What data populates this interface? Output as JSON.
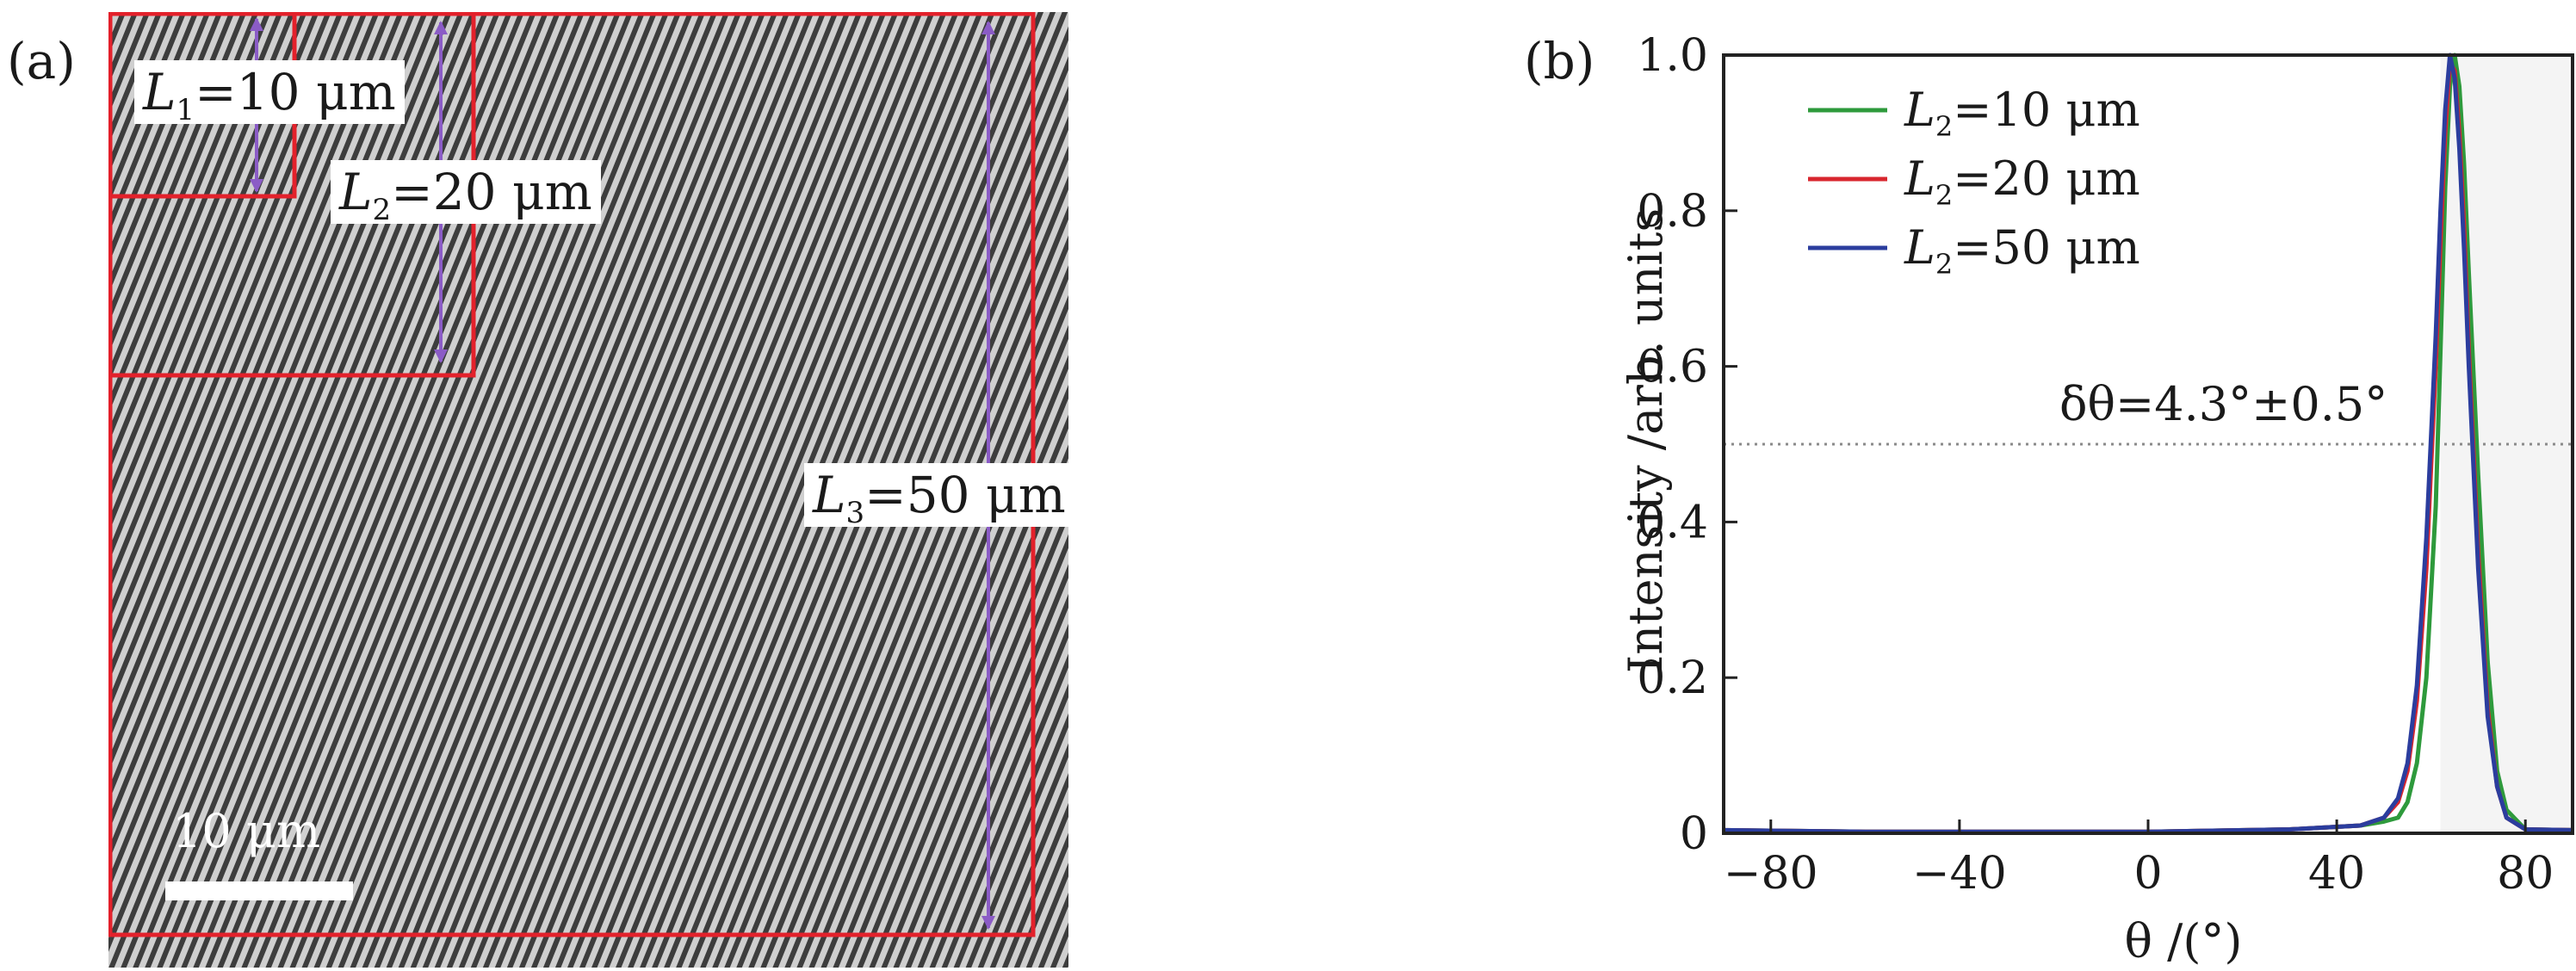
{
  "panels": {
    "a": {
      "label": "(a)",
      "annotations": {
        "l1": {
          "symbol": "L",
          "sub": "1",
          "value": "=10 μm"
        },
        "l2": {
          "symbol": "L",
          "sub": "2",
          "value": "=20 μm"
        },
        "l3": {
          "symbol": "L",
          "sub": "3",
          "value": "=50 μm"
        }
      },
      "scale_bar_label": "10 μm",
      "colors": {
        "box": "#e3212b",
        "arrow": "#8b5cc6",
        "stripe_dark": "#3d3d3d",
        "stripe_light": "#cfcfcf"
      }
    },
    "b": {
      "label": "(b)",
      "annotation": "δθ=4.3°±0.5°"
    }
  },
  "chart_data": {
    "type": "line",
    "xlabel": "θ /(°)",
    "ylabel": "Intensity /arb. units",
    "xlim": [
      -90,
      90
    ],
    "ylim": [
      0,
      1.0
    ],
    "xticks": [
      -80,
      -40,
      0,
      40,
      80
    ],
    "xtick_labels": [
      "−80",
      "−40",
      "0",
      "40",
      "80"
    ],
    "yticks": [
      0,
      0.2,
      0.4,
      0.6,
      0.8,
      1.0
    ],
    "ytick_labels": [
      "0",
      "0.2",
      "0.4",
      "0.6",
      "0.8",
      "1.0"
    ],
    "hline": {
      "y": 0.5,
      "style": "dotted"
    },
    "legend_position": "top-left",
    "series": [
      {
        "name": "L₂=10 μm",
        "name_symbol": "L",
        "name_sub": "2",
        "name_value": "=10 μm",
        "color": "#2e9a3c",
        "x": [
          -90,
          -60,
          -30,
          0,
          30,
          45,
          50,
          53,
          55,
          57,
          59,
          61,
          62,
          63,
          64,
          65,
          66,
          67,
          68,
          70,
          72,
          74,
          76,
          80,
          90
        ],
        "y": [
          0.004,
          0.002,
          0.002,
          0.002,
          0.005,
          0.01,
          0.015,
          0.02,
          0.04,
          0.09,
          0.2,
          0.42,
          0.62,
          0.83,
          0.96,
          1.0,
          0.96,
          0.86,
          0.72,
          0.46,
          0.22,
          0.08,
          0.03,
          0.005,
          0.004
        ]
      },
      {
        "name": "L₂=20 μm",
        "name_symbol": "L",
        "name_sub": "2",
        "name_value": "=20 μm",
        "color": "#d8262e",
        "x": [
          -90,
          -60,
          -30,
          0,
          30,
          45,
          50,
          53,
          55,
          57,
          59,
          61,
          62,
          63,
          64,
          65,
          66,
          67,
          68,
          70,
          72,
          74,
          76,
          80,
          90
        ],
        "y": [
          0.004,
          0.002,
          0.002,
          0.002,
          0.005,
          0.01,
          0.02,
          0.04,
          0.08,
          0.17,
          0.34,
          0.6,
          0.76,
          0.9,
          0.99,
          0.98,
          0.9,
          0.78,
          0.62,
          0.36,
          0.16,
          0.06,
          0.02,
          0.005,
          0.004
        ]
      },
      {
        "name": "L₂=50 μm",
        "name_symbol": "L",
        "name_sub": "2",
        "name_value": "=50 μm",
        "color": "#2b3d9e",
        "x": [
          -90,
          -60,
          -30,
          0,
          30,
          45,
          50,
          53,
          55,
          57,
          59,
          61,
          62,
          63,
          64,
          65,
          66,
          67,
          68,
          70,
          72,
          74,
          76,
          80,
          90
        ],
        "y": [
          0.004,
          0.002,
          0.002,
          0.002,
          0.005,
          0.01,
          0.02,
          0.045,
          0.09,
          0.19,
          0.38,
          0.64,
          0.8,
          0.93,
          1.0,
          0.97,
          0.88,
          0.75,
          0.6,
          0.34,
          0.15,
          0.06,
          0.02,
          0.005,
          0.004
        ]
      }
    ]
  }
}
